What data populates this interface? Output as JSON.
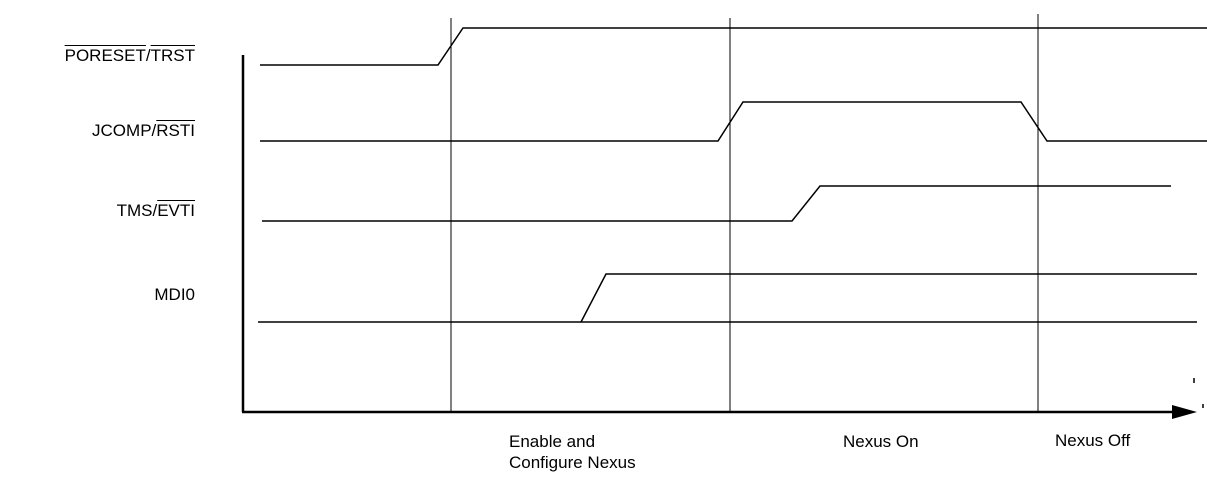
{
  "signals": [
    {
      "name": "PORESET/TRST",
      "parts": [
        {
          "text": "PORESET",
          "overline": true
        },
        {
          "text": "/",
          "overline": false
        },
        {
          "text": "TRST",
          "overline": true
        }
      ]
    },
    {
      "name": "JCOMP/RSTI",
      "parts": [
        {
          "text": "JCOMP/",
          "overline": false
        },
        {
          "text": "RSTI",
          "overline": true
        }
      ]
    },
    {
      "name": "TMS/EVTI",
      "parts": [
        {
          "text": "TMS/",
          "overline": false
        },
        {
          "text": "EVTI",
          "overline": true
        }
      ]
    },
    {
      "name": "MDI0",
      "parts": [
        {
          "text": "MDI0",
          "overline": false
        }
      ]
    }
  ],
  "phases": {
    "enable": {
      "line1": "Enable and",
      "line2": "Configure Nexus"
    },
    "nexus_on": "Nexus On",
    "nexus_off": "Nexus Off"
  },
  "colors": {
    "line": "#000000",
    "background": "#ffffff"
  }
}
